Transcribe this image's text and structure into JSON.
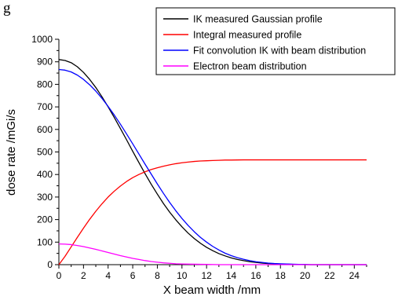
{
  "caption": "g",
  "chart_data": {
    "type": "line",
    "title": "",
    "xlabel": "X beam width /mm",
    "ylabel": "dose rate /mGi/s",
    "xlim": [
      0,
      25
    ],
    "ylim": [
      0,
      1000
    ],
    "x_ticks": [
      0,
      2,
      4,
      6,
      8,
      10,
      12,
      14,
      16,
      18,
      20,
      22,
      24
    ],
    "y_ticks": [
      0,
      100,
      200,
      300,
      400,
      500,
      600,
      700,
      800,
      900,
      1000
    ],
    "x_tick_labels": [
      "0",
      "2",
      "4",
      "6",
      "8",
      "10",
      "12",
      "14",
      "16",
      "18",
      "20",
      "22",
      "24"
    ],
    "y_tick_labels": [
      "0",
      "100",
      "200",
      "300",
      "400",
      "500",
      "600",
      "700",
      "800",
      "900",
      "1000"
    ],
    "legend_position": "top-right",
    "series": [
      {
        "name": "IK measured Gaussian profile",
        "color": "#000000",
        "x": [
          0,
          0.5,
          1,
          1.5,
          2,
          2.5,
          3,
          3.5,
          4,
          4.5,
          5,
          5.5,
          6,
          6.5,
          7,
          7.5,
          8,
          8.5,
          9,
          9.5,
          10,
          10.5,
          11,
          11.5,
          12,
          12.5,
          13,
          13.5,
          14,
          14.5,
          15,
          15.5,
          16,
          16.5,
          17,
          17.5,
          18,
          18.5,
          19,
          19.5,
          20,
          20.5,
          21,
          21.5,
          22,
          22.5,
          23,
          23.5,
          24,
          24.5,
          25
        ],
        "y": [
          910,
          906,
          896,
          878,
          853,
          822,
          786,
          745,
          700,
          653,
          604,
          554,
          503,
          453,
          404,
          357,
          313,
          271,
          233,
          199,
          168,
          140,
          116,
          95,
          77,
          62,
          49,
          39,
          30,
          23,
          18,
          13,
          10,
          7,
          5,
          4,
          3,
          2,
          1,
          1,
          0,
          0,
          0,
          0,
          0,
          0,
          0,
          0,
          0,
          0,
          0
        ]
      },
      {
        "name": "Integral measured profile",
        "color": "#ff0000",
        "x": [
          0,
          0.5,
          1,
          1.5,
          2,
          2.5,
          3,
          3.5,
          4,
          4.5,
          5,
          5.5,
          6,
          6.5,
          7,
          7.5,
          8,
          8.5,
          9,
          9.5,
          10,
          10.5,
          11,
          11.5,
          12,
          12.5,
          13,
          13.5,
          14,
          15,
          16,
          17,
          18,
          19,
          20,
          21,
          22,
          23,
          24,
          25
        ],
        "y": [
          0,
          37,
          79,
          121,
          162,
          201,
          237,
          270,
          300,
          326,
          349,
          369,
          386,
          400,
          412,
          422,
          430,
          437,
          443,
          448,
          452,
          455,
          458,
          460,
          461,
          462,
          463,
          464,
          464,
          465,
          465,
          465,
          465,
          465,
          465,
          465,
          465,
          465,
          465,
          465
        ]
      },
      {
        "name": "Fit convolution IK with beam distribution",
        "color": "#0000ff",
        "x": [
          0,
          0.5,
          1,
          1.5,
          2,
          2.5,
          3,
          3.5,
          4,
          4.5,
          5,
          5.5,
          6,
          6.5,
          7,
          7.5,
          8,
          8.5,
          9,
          9.5,
          10,
          10.5,
          11,
          11.5,
          12,
          12.5,
          13,
          13.5,
          14,
          14.5,
          15,
          15.5,
          16,
          16.5,
          17,
          17.5,
          18,
          18.5,
          19,
          19.5,
          20,
          20.5,
          21,
          21.5,
          22,
          22.5,
          23,
          23.5,
          24,
          24.5,
          25
        ],
        "y": [
          866,
          863,
          855,
          841,
          822,
          798,
          770,
          738,
          702,
          664,
          623,
          580,
          536,
          491,
          446,
          402,
          358,
          316,
          276,
          239,
          205,
          174,
          146,
          121,
          100,
          81,
          65,
          51,
          40,
          31,
          24,
          18,
          13,
          10,
          7,
          5,
          4,
          3,
          2,
          1,
          1,
          0,
          0,
          0,
          0,
          0,
          0,
          0,
          0,
          0,
          0
        ]
      },
      {
        "name": "Electron beam distribution",
        "color": "#ff00ff",
        "x": [
          0,
          0.5,
          1,
          1.5,
          2,
          2.5,
          3,
          3.5,
          4,
          4.5,
          5,
          5.5,
          6,
          6.5,
          7,
          7.5,
          8,
          8.5,
          9,
          9.5,
          10,
          11,
          12,
          13,
          14,
          15,
          16,
          18,
          20,
          22,
          24,
          25
        ],
        "y": [
          92,
          91,
          89,
          85,
          80,
          74,
          68,
          61,
          54,
          47,
          40,
          34,
          28,
          23,
          18,
          14,
          11,
          8,
          6,
          4,
          3,
          2,
          1,
          0,
          0,
          0,
          0,
          0,
          0,
          0,
          0,
          0
        ]
      }
    ]
  }
}
